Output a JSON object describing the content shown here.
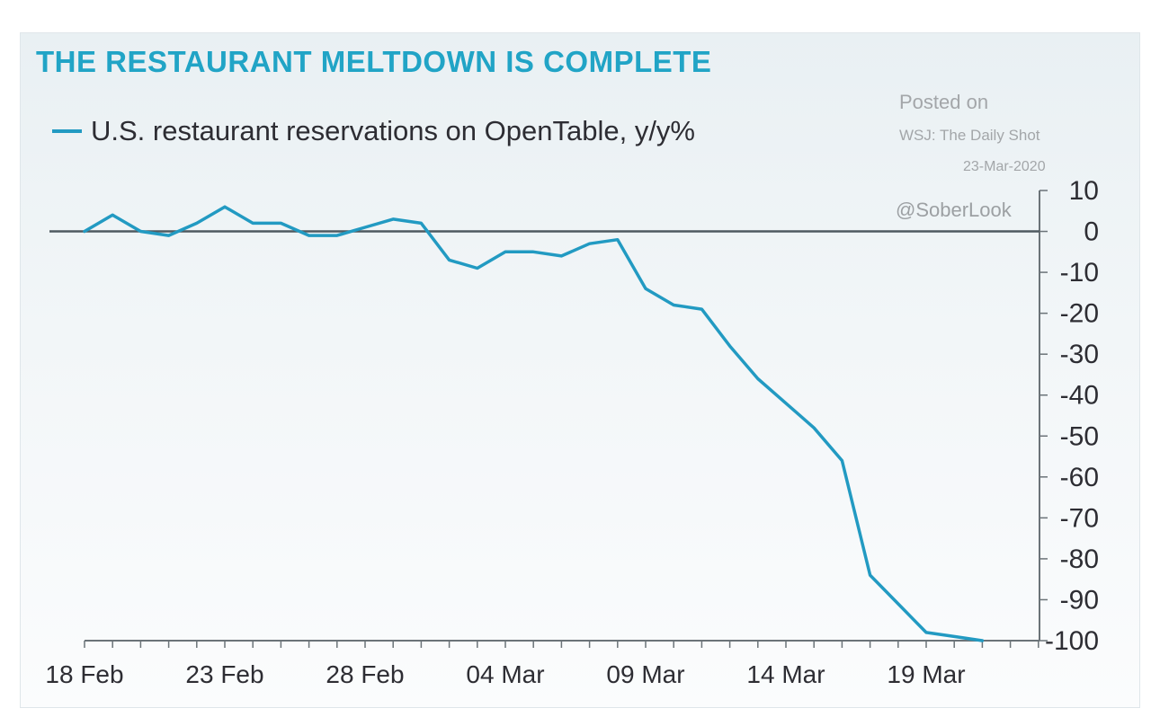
{
  "chart_data": {
    "type": "line",
    "title": "THE RESTAURANT MELTDOWN IS COMPLETE",
    "xlabel": "",
    "ylabel": "",
    "ylim": [
      -100,
      10
    ],
    "y_ticks": [
      10,
      0,
      -10,
      -20,
      -30,
      -40,
      -50,
      -60,
      -70,
      -80,
      -90,
      -100
    ],
    "x_tick_labels": [
      "18 Feb",
      "23 Feb",
      "28 Feb",
      "04 Mar",
      "09 Mar",
      "14 Mar",
      "19 Mar"
    ],
    "x": [
      "18 Feb",
      "19 Feb",
      "20 Feb",
      "21 Feb",
      "22 Feb",
      "23 Feb",
      "24 Feb",
      "25 Feb",
      "26 Feb",
      "27 Feb",
      "28 Feb",
      "29 Feb",
      "01 Mar",
      "02 Mar",
      "03 Mar",
      "04 Mar",
      "05 Mar",
      "06 Mar",
      "07 Mar",
      "08 Mar",
      "09 Mar",
      "10 Mar",
      "11 Mar",
      "12 Mar",
      "13 Mar",
      "14 Mar",
      "15 Mar",
      "16 Mar",
      "17 Mar",
      "18 Mar",
      "19 Mar",
      "20 Mar",
      "21 Mar"
    ],
    "series": [
      {
        "name": "U.S. restaurant reservations on OpenTable, y/y%",
        "color": "#229ac2",
        "values": [
          0,
          4,
          0,
          -1,
          2,
          6,
          2,
          2,
          -1,
          -1,
          1,
          3,
          2,
          -7,
          -9,
          -5,
          -5,
          -6,
          -3,
          -2,
          -14,
          -18,
          -19,
          -28,
          -36,
          -42,
          -48,
          -56,
          -84,
          -91,
          -98,
          -99,
          -100
        ]
      }
    ],
    "legend_position": "top-left",
    "grid": false,
    "zero_line": true
  },
  "attribution": {
    "posted": "Posted on",
    "source": "WSJ: The Daily Shot",
    "date": "23-Mar-2020",
    "handle": "@SoberLook"
  }
}
